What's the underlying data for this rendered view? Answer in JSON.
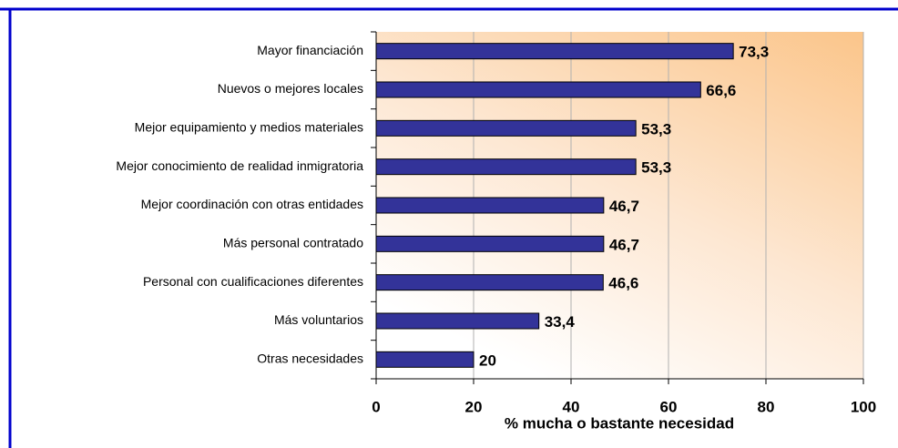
{
  "chart_data": {
    "type": "bar",
    "orientation": "horizontal",
    "x_label": "% mucha o bastante necesidad",
    "categories": [
      "Mayor financiación",
      "Nuevos o mejores locales",
      "Mejor equipamiento y  medios materiales",
      "Mejor conocimiento de realidad inmigratoria",
      "Mejor coordinación con otras entidades",
      "Más personal contratado",
      "Personal con cualificaciones diferentes",
      "Más voluntarios",
      "Otras necesidades"
    ],
    "values": [
      73.3,
      66.6,
      53.3,
      53.3,
      46.7,
      46.7,
      46.6,
      33.4,
      20
    ],
    "value_labels": [
      "73,3",
      "66,6",
      "53,3",
      "53,3",
      "46,7",
      "46,7",
      "46,6",
      "33,4",
      "20"
    ],
    "color": "#333399",
    "xlim": [
      0,
      100
    ],
    "xticks": [
      0,
      20,
      40,
      60,
      80,
      100
    ],
    "grid": true
  }
}
